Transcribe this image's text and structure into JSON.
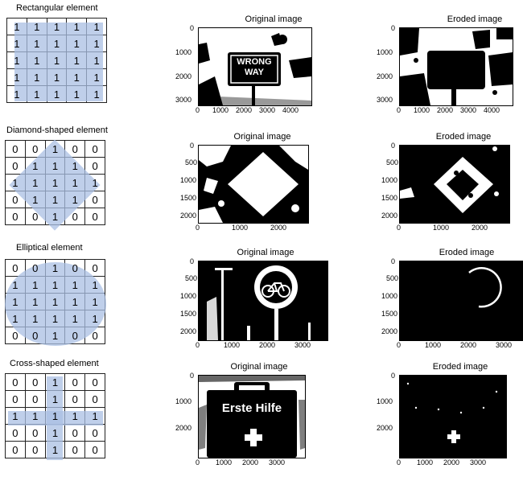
{
  "panel_titles": {
    "original": "Original image",
    "eroded": "Eroded image"
  },
  "elements": [
    {
      "title": "Rectangular element",
      "matrix": [
        [
          "1",
          "1",
          "1",
          "1",
          "1"
        ],
        [
          "1",
          "1",
          "1",
          "1",
          "1"
        ],
        [
          "1",
          "1",
          "1",
          "1",
          "1"
        ],
        [
          "1",
          "1",
          "1",
          "1",
          "1"
        ],
        [
          "1",
          "1",
          "1",
          "1",
          "1"
        ]
      ],
      "sign_text": [
        "WRONG",
        "WAY"
      ],
      "x_ticks": [
        "0",
        "1000",
        "2000",
        "3000",
        "4000"
      ],
      "y_ticks": [
        "0",
        "1000",
        "2000",
        "3000"
      ]
    },
    {
      "title": "Diamond-shaped element",
      "matrix": [
        [
          "0",
          "0",
          "1",
          "0",
          "0"
        ],
        [
          "0",
          "1",
          "1",
          "1",
          "0"
        ],
        [
          "1",
          "1",
          "1",
          "1",
          "1"
        ],
        [
          "0",
          "1",
          "1",
          "1",
          "0"
        ],
        [
          "0",
          "0",
          "1",
          "0",
          "0"
        ]
      ],
      "x_ticks": [
        "0",
        "1000",
        "2000"
      ],
      "y_ticks": [
        "0",
        "500",
        "1000",
        "1500",
        "2000"
      ]
    },
    {
      "title": "Elliptical element",
      "matrix": [
        [
          "0",
          "0",
          "1",
          "0",
          "0"
        ],
        [
          "1",
          "1",
          "1",
          "1",
          "1"
        ],
        [
          "1",
          "1",
          "1",
          "1",
          "1"
        ],
        [
          "1",
          "1",
          "1",
          "1",
          "1"
        ],
        [
          "0",
          "0",
          "1",
          "0",
          "0"
        ]
      ],
      "x_ticks": [
        "0",
        "1000",
        "2000",
        "3000"
      ],
      "y_ticks": [
        "0",
        "500",
        "1000",
        "1500",
        "2000"
      ]
    },
    {
      "title": "Cross-shaped element",
      "matrix": [
        [
          "0",
          "0",
          "1",
          "0",
          "0"
        ],
        [
          "0",
          "0",
          "1",
          "0",
          "0"
        ],
        [
          "1",
          "1",
          "1",
          "1",
          "1"
        ],
        [
          "0",
          "0",
          "1",
          "0",
          "0"
        ],
        [
          "0",
          "0",
          "1",
          "0",
          "0"
        ]
      ],
      "sign_text": [
        "Erste Hilfe"
      ],
      "x_ticks": [
        "0",
        "1000",
        "2000",
        "3000"
      ],
      "y_ticks": [
        "0",
        "1000",
        "2000"
      ]
    }
  ]
}
